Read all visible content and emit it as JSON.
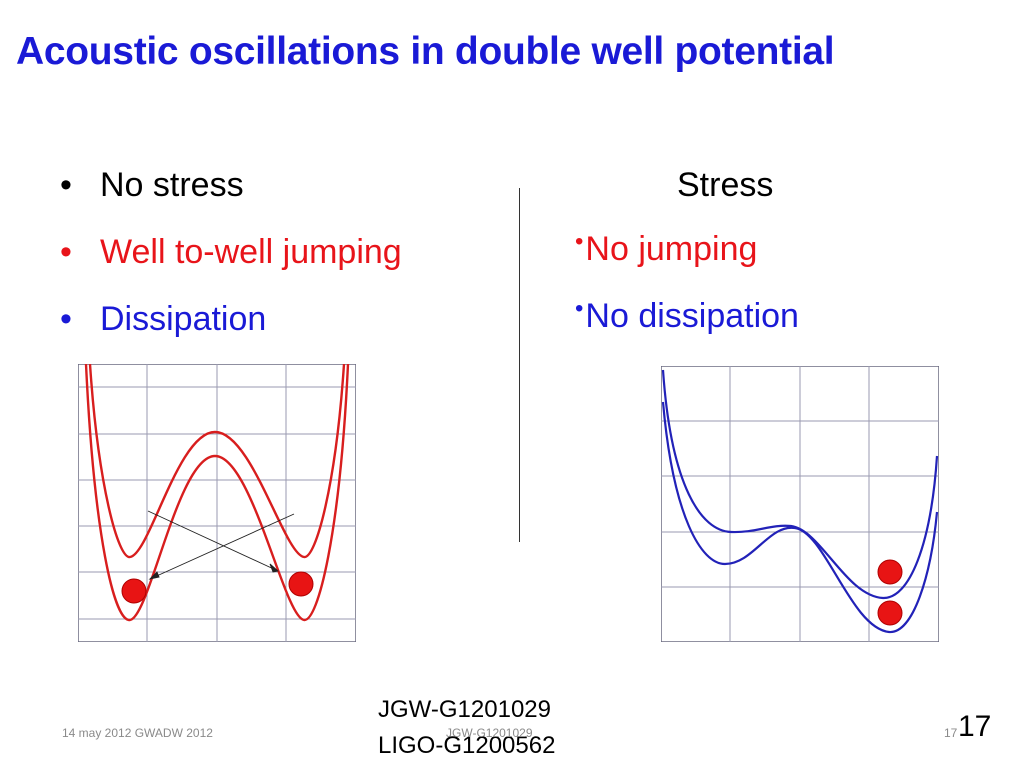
{
  "slide": {
    "title": "Acoustic oscillations in double well potential",
    "left_items": [
      {
        "text": "No stress",
        "color": "#000000"
      },
      {
        "text": "Well to-well jumping",
        "color": "#e8141a"
      },
      {
        "text": "Dissipation",
        "color": "#1a1ad6"
      }
    ],
    "bullet_glyph": "•",
    "right_heading": "Stress",
    "right_items": [
      {
        "text": "No jumping",
        "color": "#e8141a"
      },
      {
        "text": "No dissipation",
        "color": "#1a1ad6"
      }
    ],
    "doc_codes": [
      "JGW-G1201029",
      "LIGO-G1200562"
    ]
  },
  "footer": {
    "date_event": "14 may 2012 GWADW 2012",
    "doc_id": "JGW-G1201029",
    "page_small": "17",
    "page_number": "17"
  },
  "colors": {
    "title": "#1a1ad6",
    "left_curve": "#d81e1e",
    "right_curve": "#2222b8",
    "ball": "#e81414",
    "grid": "#8a8aa0"
  },
  "icons": {
    "left_diagram": "double-well-symmetric",
    "right_diagram": "double-well-tilted",
    "ball": "red-ball-icon",
    "arrow": "jump-arrow-icon"
  }
}
